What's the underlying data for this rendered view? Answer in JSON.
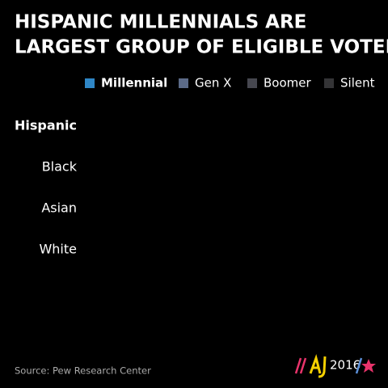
{
  "chart_data": {
    "type": "stacked-hbar",
    "title": [
      "HISPANIC MILLENNIALS ARE",
      "LARGEST GROUP OF ELIGIBLE VOTERS"
    ],
    "categories": [
      "Hispanic",
      "Black",
      "Asian",
      "White"
    ],
    "series": [
      {
        "name": "Millennial",
        "color": "#2f86c6",
        "values": [
          null,
          null,
          null,
          null
        ]
      },
      {
        "name": "Gen X",
        "color": "#5c6b88",
        "values": [
          null,
          null,
          null,
          null
        ]
      },
      {
        "name": "Boomer",
        "color": "#46474f",
        "values": [
          null,
          null,
          null,
          null
        ]
      },
      {
        "name": "Silent",
        "color": "#343436",
        "values": [
          null,
          null,
          null,
          null
        ]
      }
    ],
    "highlight_series": 0,
    "highlight_category": 0,
    "source": "Source: Pew Research Center",
    "brand": "2016"
  }
}
